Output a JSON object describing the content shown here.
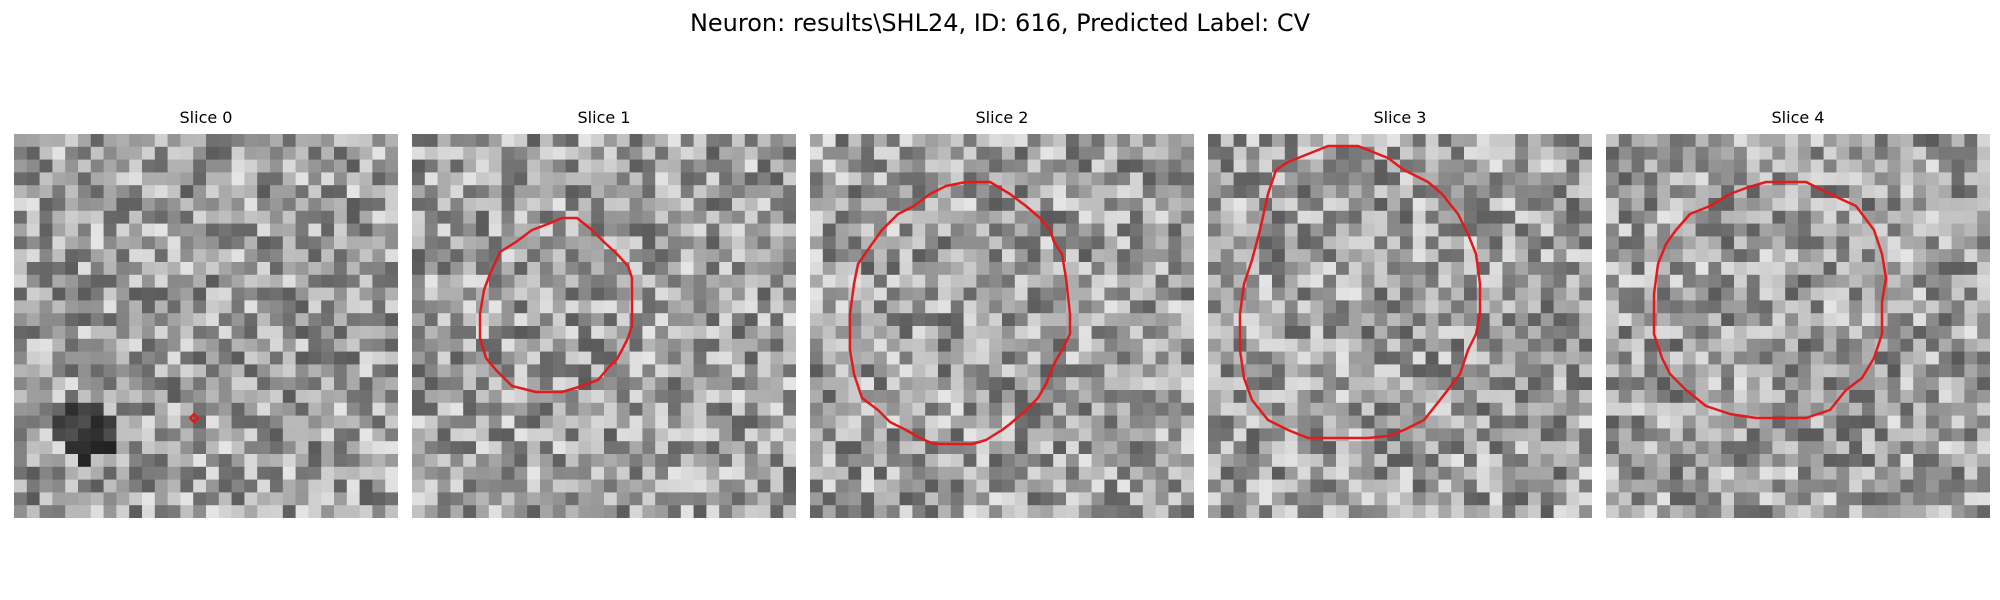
{
  "figure": {
    "title": "Neuron: results\\SHL24, ID: 616, Predicted Label: CV"
  },
  "panels": [
    {
      "title": "Slice 0",
      "grid": 30,
      "seed": 11,
      "dark_spot": [
        0.17,
        0.76
      ],
      "ring": "tiny"
    },
    {
      "title": "Slice 1",
      "grid": 30,
      "seed": 23,
      "ring": "medium"
    },
    {
      "title": "Slice 2",
      "grid": 30,
      "seed": 37,
      "ring": "large-low"
    },
    {
      "title": "Slice 3",
      "grid": 30,
      "seed": 53,
      "ring": "large-high"
    },
    {
      "title": "Slice 4",
      "grid": 30,
      "seed": 71,
      "ring": "large-mid"
    }
  ],
  "colors": {
    "contour": "#e31a1c",
    "colormap": "gray"
  }
}
